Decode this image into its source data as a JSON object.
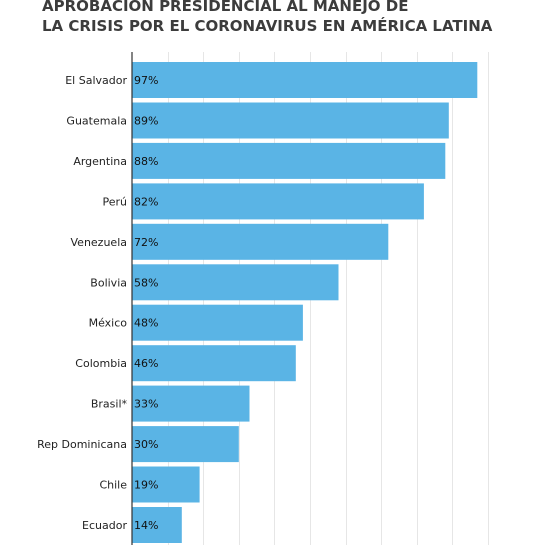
{
  "chart_data": {
    "type": "bar",
    "orientation": "horizontal",
    "title_lines": [
      "APROBACIÓN PRESIDENCIAL AL MANEJO DE",
      "LA CRISIS POR EL CORONAVIRUS EN AMÉRICA LATINA"
    ],
    "categories": [
      "El Salvador",
      "Guatemala",
      "Argentina",
      "Perú",
      "Venezuela",
      "Bolivia",
      "México",
      "Colombia",
      "Brasil*",
      "Rep Dominicana",
      "Chile",
      "Ecuador"
    ],
    "values": [
      97,
      89,
      88,
      82,
      72,
      58,
      48,
      46,
      33,
      30,
      19,
      14
    ],
    "value_labels": [
      "97%",
      "89%",
      "88%",
      "82%",
      "72%",
      "58%",
      "48%",
      "46%",
      "33%",
      "30%",
      "19%",
      "14%"
    ],
    "xlim": [
      0,
      100
    ],
    "grid": true,
    "bar_color": "#5ab4e5",
    "grid_color": "#e6e6e6",
    "axis_color": "#333333"
  }
}
